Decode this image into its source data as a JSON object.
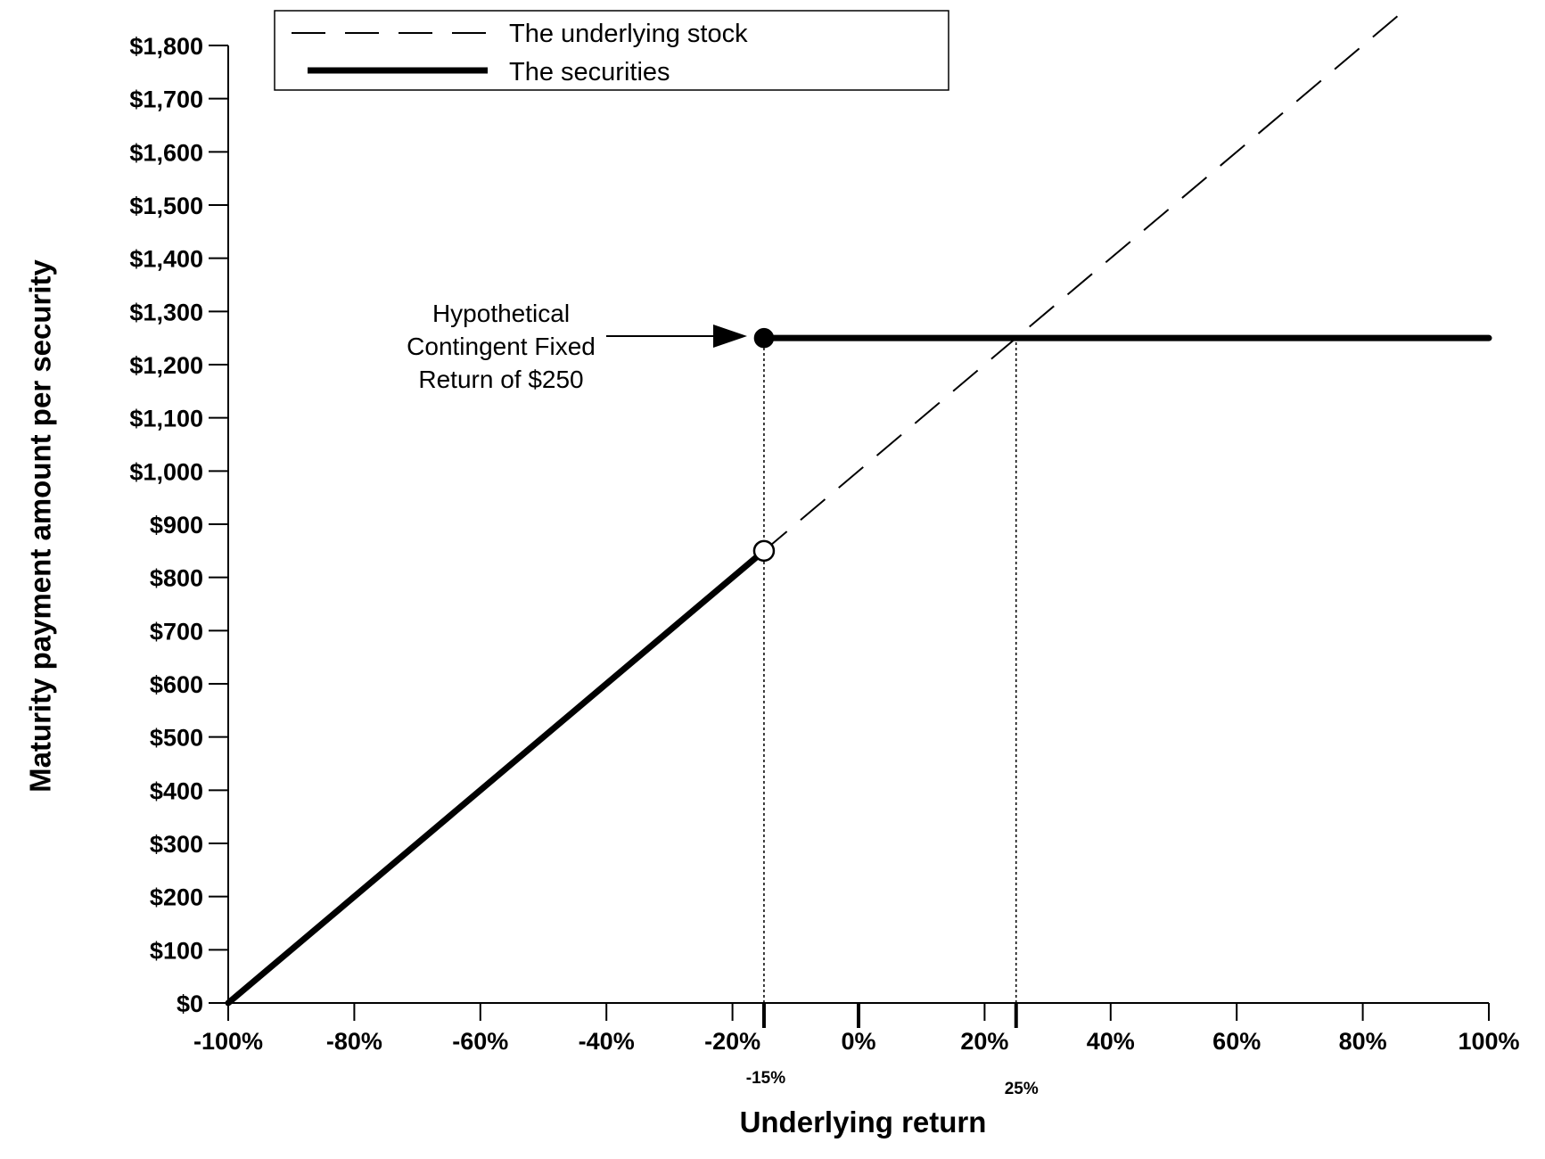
{
  "chart_data": {
    "type": "line",
    "xlabel": "Underlying return",
    "ylabel": "Maturity payment amount per security",
    "xlim": [
      -100,
      100
    ],
    "ylim": [
      0,
      1800
    ],
    "x_ticks": [
      -100,
      -80,
      -60,
      -40,
      -20,
      0,
      20,
      40,
      60,
      80,
      100
    ],
    "x_tick_labels": [
      "-100%",
      "-80%",
      "-60%",
      "-40%",
      "-20%",
      "0%",
      "20%",
      "40%",
      "60%",
      "80%",
      "100%"
    ],
    "x_minor_ticks": [
      -15,
      25
    ],
    "x_minor_tick_labels": [
      "-15%",
      "25%"
    ],
    "y_ticks": [
      0,
      100,
      200,
      300,
      400,
      500,
      600,
      700,
      800,
      900,
      1000,
      1100,
      1200,
      1300,
      1400,
      1500,
      1600,
      1700,
      1800
    ],
    "y_tick_labels": [
      "$0",
      "$100",
      "$200",
      "$300",
      "$400",
      "$500",
      "$600",
      "$700",
      "$800",
      "$900",
      "$1,000",
      "$1,100",
      "$1,200",
      "$1,300",
      "$1,400",
      "$1,500",
      "$1,600",
      "$1,700",
      "$1,800"
    ],
    "grid": false,
    "legend_position": "top-left",
    "series": [
      {
        "name": "The underlying stock",
        "style": "dashed",
        "x": [
          -100,
          86
        ],
        "y": [
          0,
          1860
        ]
      },
      {
        "name": "The securities",
        "style": "solid-thick",
        "segments": [
          {
            "x": [
              -100,
              -15
            ],
            "y": [
              0,
              850
            ]
          },
          {
            "x": [
              -15,
              100
            ],
            "y": [
              1250,
              1250
            ]
          }
        ]
      }
    ],
    "markers": [
      {
        "x": -15,
        "y": 1250,
        "fill": "filled"
      },
      {
        "x": -15,
        "y": 850,
        "fill": "open"
      }
    ],
    "reference_lines": [
      {
        "x": -15,
        "y_top": 1250
      },
      {
        "x": 25,
        "y_top": 1250
      }
    ],
    "annotation": {
      "lines": [
        "Hypothetical",
        "Contingent Fixed",
        "Return of $250"
      ],
      "points_to": {
        "x": -15,
        "y": 1250
      }
    }
  },
  "colors": {
    "line": "#000000",
    "background": "#ffffff"
  }
}
